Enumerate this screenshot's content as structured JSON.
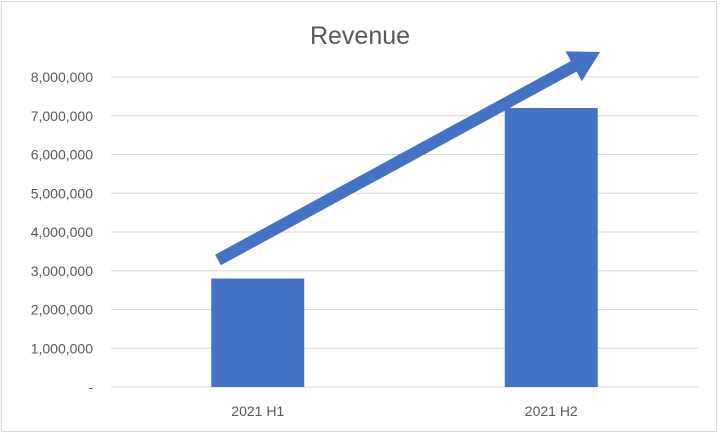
{
  "chart_data": {
    "type": "bar",
    "title": "Revenue",
    "categories": [
      "2021 H1",
      "2021 H2"
    ],
    "values": [
      2800000,
      7200000
    ],
    "ylim": [
      0,
      8000000
    ],
    "yticks": [
      0,
      1000000,
      2000000,
      3000000,
      4000000,
      5000000,
      6000000,
      7000000,
      8000000
    ],
    "ytick_labels": [
      "-",
      "1,000,000",
      "2,000,000",
      "3,000,000",
      "4,000,000",
      "5,000,000",
      "6,000,000",
      "7,000,000",
      "8,000,000"
    ],
    "grid": true,
    "xlabel": "",
    "ylabel": "",
    "annotations": [
      {
        "type": "trend-arrow",
        "from_category": "2021 H1",
        "to_category": "2021 H2",
        "direction": "up"
      }
    ],
    "colors": {
      "bar": "#4472c4",
      "arrow": "#4472c4",
      "grid": "#d9d9d9",
      "text": "#595959"
    }
  }
}
